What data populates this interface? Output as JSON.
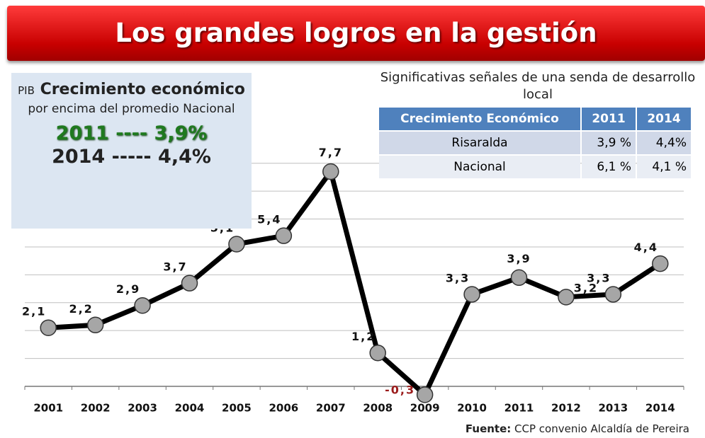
{
  "title": "Los grandes logros en la gestión",
  "panel": {
    "prefix": "PIB",
    "heading": "Crecimiento económico",
    "subtitle": "por encima del promedio Nacional",
    "line_2011": "2011 ---- 3,9%",
    "line_2014": "2014 ----- 4,4%"
  },
  "table": {
    "caption": "Significativas señales de una senda de desarrollo local",
    "header": [
      "Crecimiento Económico",
      "2011",
      "2014"
    ],
    "rows": [
      [
        "Risaralda",
        "3,9 %",
        "4,4%"
      ],
      [
        "Nacional",
        "6,1 %",
        "4,1 %"
      ]
    ]
  },
  "chart_data": {
    "type": "line",
    "categories": [
      "2001",
      "2002",
      "2003",
      "2004",
      "2005",
      "2006",
      "2007",
      "2008",
      "2009",
      "2010",
      "2011",
      "2012",
      "2013",
      "2014"
    ],
    "values": [
      2.1,
      2.2,
      2.9,
      3.7,
      5.1,
      5.4,
      7.7,
      1.2,
      -0.3,
      3.3,
      3.9,
      3.2,
      3.3,
      4.4
    ],
    "value_labels": [
      "2,1",
      "2,2",
      "2,9",
      "3,7",
      "5,1",
      "5,4",
      "7,7",
      "1,2",
      "-0,3",
      "3,3",
      "3,9",
      "3,2",
      "3,3",
      "4,4"
    ],
    "color": "#000000",
    "marker_color": "#a6a6a6",
    "ylim": [
      -0.5,
      8.5
    ],
    "yticks": [
      0,
      1,
      2,
      3,
      4,
      5,
      6,
      7,
      8
    ],
    "grid": true
  },
  "source": {
    "label": "Fuente:",
    "text": "CCP convenio Alcaldía de Pereira"
  }
}
